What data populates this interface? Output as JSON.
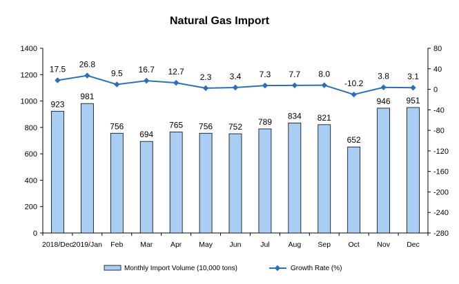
{
  "chart_data": {
    "type": "bar",
    "title": "Natural Gas Import",
    "categories": [
      "2018/Dec",
      "2019/Jan",
      "Feb",
      "Mar",
      "Apr",
      "May",
      "Jun",
      "Jul",
      "Aug",
      "Sep",
      "Oct",
      "Nov",
      "Dec"
    ],
    "series": [
      {
        "name": "Monthly Import Volume (10,000 tons)",
        "type": "bar",
        "axis": "left",
        "values": [
          923,
          981,
          756,
          694,
          765,
          756,
          752,
          789,
          834,
          821,
          652,
          946,
          951
        ],
        "labels": [
          "923",
          "981",
          "756",
          "694",
          "765",
          "756",
          "752",
          "789",
          "834",
          "821",
          "652",
          "946",
          "951"
        ],
        "color": "#a9cdf3"
      },
      {
        "name": "Growth Rate (%)",
        "type": "line",
        "axis": "right",
        "values": [
          17.5,
          26.8,
          9.5,
          16.7,
          12.7,
          2.3,
          3.4,
          7.3,
          7.7,
          8.0,
          -10.2,
          3.8,
          3.1
        ],
        "labels": [
          "17.5",
          "26.8",
          "9.5",
          "16.7",
          "12.7",
          "2.3",
          "3.4",
          "7.3",
          "7.7",
          "8.0",
          "-10.2",
          "3.8",
          "3.1"
        ],
        "color": "#2e6fb3"
      }
    ],
    "y_left": {
      "min": 0,
      "max": 1400,
      "ticks": [
        0,
        200,
        400,
        600,
        800,
        1000,
        1200,
        1400
      ],
      "tick_labels": [
        "0",
        "200",
        "400",
        "600",
        "800",
        "1000",
        "1200",
        "1400"
      ]
    },
    "y_right": {
      "min": -280,
      "max": 80,
      "ticks": [
        -280,
        -240,
        -200,
        -160,
        -120,
        -80,
        -40,
        0,
        40,
        80
      ],
      "tick_labels": [
        "-280",
        "-240",
        "-200",
        "-160",
        "-120",
        "-80",
        "-40",
        "0",
        "40",
        "80"
      ]
    },
    "grid": false,
    "legend_position": "bottom"
  }
}
